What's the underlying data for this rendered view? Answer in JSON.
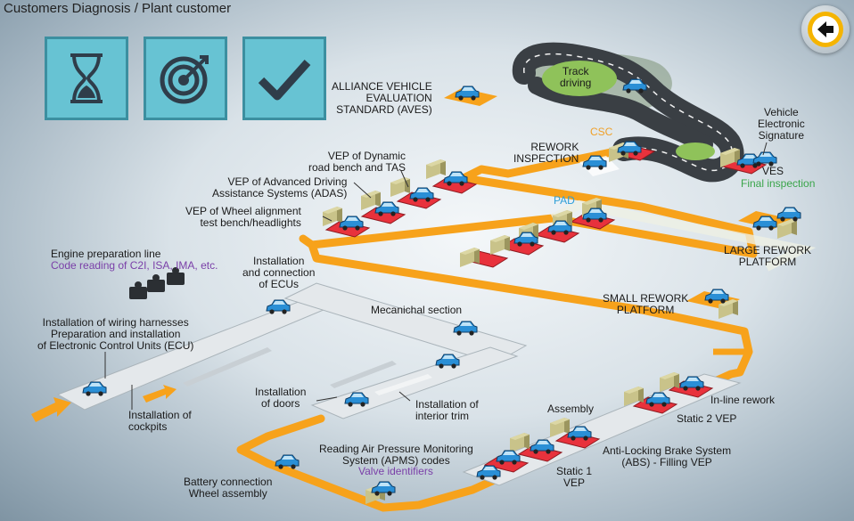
{
  "header": {
    "title": "Customers Diagnosis / Plant customer"
  },
  "toolbar": {
    "tiles": [
      {
        "icon": "hourglass-icon"
      },
      {
        "icon": "target-icon"
      },
      {
        "icon": "checkmark-icon"
      }
    ],
    "back_icon": "back-arrow-icon"
  },
  "colors": {
    "road": "#f7a21b",
    "tile": "#67c3d3",
    "station": "#e8323c",
    "car": "#2a8fd6",
    "back_ring": "#f5b400"
  },
  "labels": {
    "aves": [
      "ALLIANCE VEHICLE",
      "EVALUATION",
      "STANDARD (AVES)"
    ],
    "track": [
      "Track",
      "driving"
    ],
    "csc": "CSC",
    "rework_inspection": [
      "REWORK",
      "INSPECTION"
    ],
    "ves_sig": [
      "Vehicle",
      "Electronic",
      "Signature"
    ],
    "ves": "VES",
    "final_inspection": "Final inspection",
    "vep_dynamic": [
      "VEP of Dynamic",
      "road bench and TAS"
    ],
    "vep_adas": [
      "VEP of Advanced Driving",
      "Assistance Systems (ADAS)"
    ],
    "vep_wheel": [
      "VEP of Wheel alignment",
      "test bench/headlights"
    ],
    "pad": "PAD",
    "large_rework": [
      "LARGE REWORK",
      "PLATFORM"
    ],
    "engine": "Engine preparation line",
    "engine_codes": "Code reading of C2I, ISA, IMA, etc.",
    "ecus": [
      "Installation",
      "and connection",
      "of ECUs"
    ],
    "small_rework": [
      "SMALL REWORK",
      "PLATFORM"
    ],
    "wiring": [
      "Installation of wiring harnesses",
      "Preparation and installation",
      "of Electronic Control Units (ECU)"
    ],
    "mecanichal": "Mecanichal section",
    "doors": [
      "Installation",
      "of doors"
    ],
    "interior": [
      "Installation of",
      "interior trim"
    ],
    "cockpits": [
      "Installation of",
      "cockpits"
    ],
    "assembly": "Assembly",
    "inline_rework": "In-line rework",
    "static2": "Static 2 VEP",
    "abs": [
      "Anti-Locking Brake System",
      "(ABS) - Filling VEP"
    ],
    "static1": [
      "Static 1",
      "VEP"
    ],
    "apms": [
      "Reading Air Pressure Monitoring",
      "System (APMS) codes"
    ],
    "valve": "Valve identifiers",
    "battery": [
      "Battery connection",
      "Wheel assembly"
    ]
  }
}
